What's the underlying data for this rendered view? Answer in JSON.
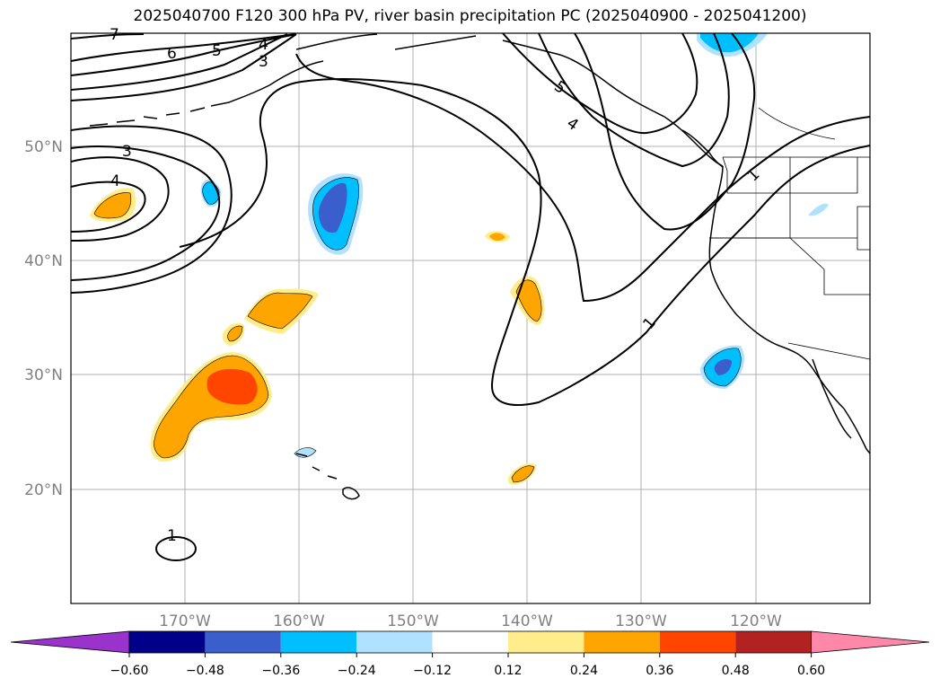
{
  "title": "2025040700 F120 300 hPa PV, river basin precipitation PC (2025040900 - 2025041200)",
  "map": {
    "projection": "lat-lon",
    "lon_range": [
      -180,
      -110
    ],
    "lat_range": [
      10,
      60
    ],
    "grid": true,
    "lat_ticks": [
      "20°N",
      "30°N",
      "40°N",
      "50°N"
    ],
    "lon_ticks": [
      "170°W",
      "160°W",
      "150°W",
      "140°W",
      "130°W",
      "120°W"
    ]
  },
  "pv_contour_labels": [
    "7",
    "6",
    "5",
    "4",
    "3",
    "3",
    "4",
    "5",
    "4",
    "1",
    "1",
    "1"
  ],
  "colorbar": {
    "ticks": [
      "−0.60",
      "−0.48",
      "−0.36",
      "−0.24",
      "−0.12",
      "0.12",
      "0.24",
      "0.36",
      "0.48",
      "0.60"
    ],
    "colors": [
      "#9933cc",
      "#00008b",
      "#3a5fcd",
      "#00bfff",
      "#b0e2ff",
      "#ffffff",
      "#ffec8b",
      "#ffa500",
      "#ff4500",
      "#b22222",
      "#ff88aa"
    ],
    "extend": "both"
  }
}
